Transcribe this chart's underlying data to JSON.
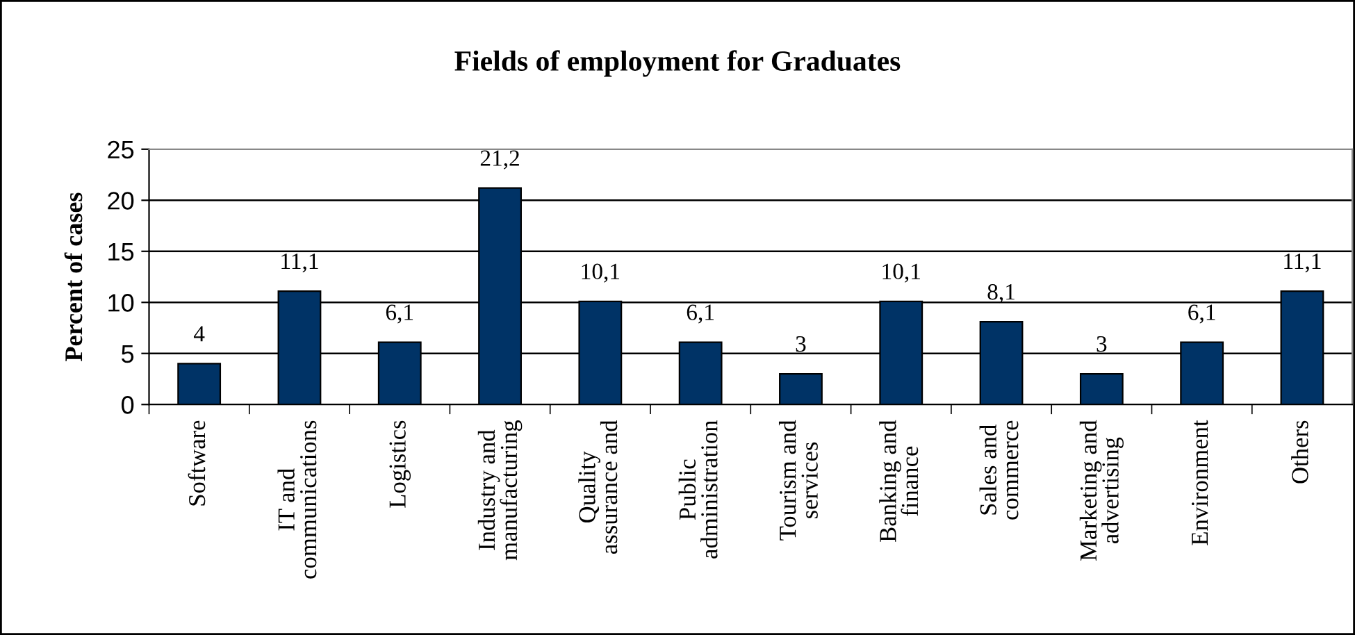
{
  "chart_data": {
    "type": "bar",
    "title": "Fields of employment for Graduates",
    "ylabel": "Percent of cases",
    "categories": [
      "Software",
      "IT and\ncommunications",
      "Logistics",
      "Industry and\nmanufacturing",
      "Quality\nassurance and",
      "Public\nadministration",
      "Tourism and\nservices",
      "Banking and\nfinance",
      "Sales and\ncommerce",
      "Marketing and\nadvertising",
      "Environment",
      "Others"
    ],
    "values": [
      4,
      11.1,
      6.1,
      21.2,
      10.1,
      6.1,
      3,
      10.1,
      8.1,
      3,
      6.1,
      11.1
    ],
    "value_labels": [
      "4",
      "11,1",
      "6,1",
      "21,2",
      "10,1",
      "6,1",
      "3",
      "10,1",
      "8,1",
      "3",
      "6,1",
      "11,1"
    ],
    "color": "#003366",
    "ylim": [
      0,
      25
    ],
    "yticks": [
      0,
      5,
      10,
      15,
      20,
      25
    ],
    "grid": "y",
    "legend": false
  }
}
